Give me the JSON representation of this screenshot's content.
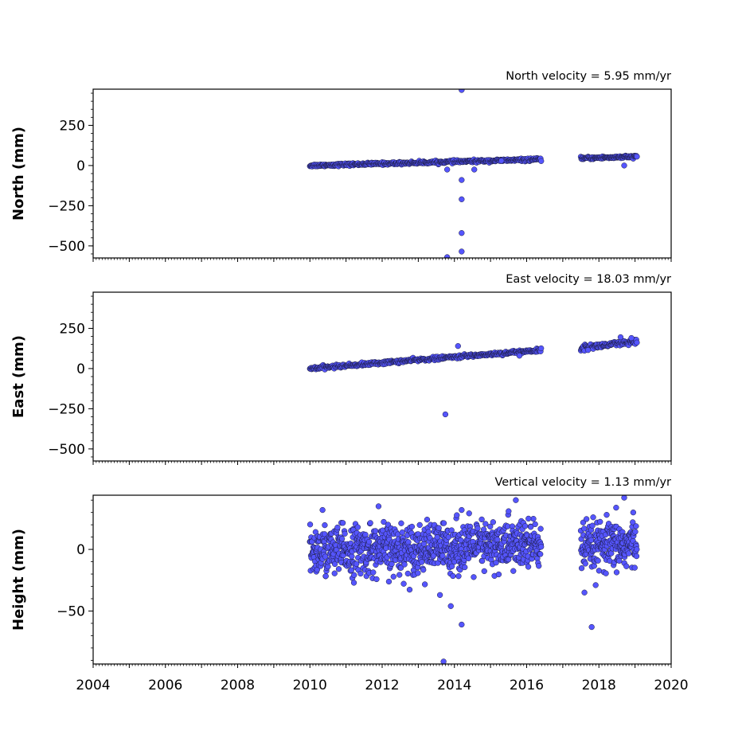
{
  "chart_data": [
    {
      "type": "scatter",
      "title": "North velocity = 5.95 mm/yr",
      "xlabel": "",
      "ylabel": "North (mm)",
      "xlim": [
        2004,
        2020
      ],
      "ylim": [
        -575,
        475
      ],
      "xticks": [
        2004,
        2006,
        2008,
        2010,
        2012,
        2014,
        2016,
        2018,
        2020
      ],
      "yticks": [
        250,
        0,
        -250,
        -500
      ],
      "ytick_labels": [
        "250",
        "0",
        "−250",
        "−500"
      ],
      "show_xtick_labels": false,
      "marker_color": "#5555ff",
      "series": [
        {
          "name": "",
          "segments": [
            {
              "x0": 2010.0,
              "x1": 2016.4,
              "y0": 0,
              "y1": 38,
              "scatter": 4,
              "n": 420
            },
            {
              "x0": 2017.5,
              "x1": 2019.05,
              "y0": 45,
              "y1": 55,
              "scatter": 4,
              "n": 110
            }
          ],
          "outliers": [
            [
              2014.2,
              470
            ],
            [
              2014.2,
              -90
            ],
            [
              2014.2,
              -210
            ],
            [
              2014.2,
              -420
            ],
            [
              2014.2,
              -535
            ],
            [
              2013.8,
              -570
            ],
            [
              2013.8,
              -25
            ],
            [
              2014.55,
              -25
            ],
            [
              2018.7,
              0
            ],
            [
              2015.3,
              30
            ]
          ]
        }
      ]
    },
    {
      "type": "scatter",
      "title": "East velocity = 18.03 mm/yr",
      "xlabel": "",
      "ylabel": "East (mm)",
      "xlim": [
        2004,
        2020
      ],
      "ylim": [
        -575,
        475
      ],
      "xticks": [
        2004,
        2006,
        2008,
        2010,
        2012,
        2014,
        2016,
        2018,
        2020
      ],
      "yticks": [
        250,
        0,
        -250,
        -500
      ],
      "ytick_labels": [
        "250",
        "0",
        "−250",
        "−500"
      ],
      "show_xtick_labels": false,
      "marker_color": "#5555ff",
      "series": [
        {
          "name": "",
          "segments": [
            {
              "x0": 2010.0,
              "x1": 2016.4,
              "y0": 0,
              "y1": 115,
              "scatter": 5,
              "n": 420
            },
            {
              "x0": 2017.5,
              "x1": 2019.05,
              "y0": 130,
              "y1": 165,
              "scatter": 8,
              "n": 110
            }
          ],
          "outliers": [
            [
              2014.1,
              140
            ],
            [
              2013.75,
              -285
            ],
            [
              2015.8,
              80
            ],
            [
              2018.6,
              195
            ],
            [
              2018.9,
              190
            ],
            [
              2017.7,
              115
            ]
          ]
        }
      ]
    },
    {
      "type": "scatter",
      "title": "Vertical velocity = 1.13 mm/yr",
      "xlabel": "",
      "ylabel": "Height (mm)",
      "xlim": [
        2004,
        2020
      ],
      "ylim": [
        -93,
        44
      ],
      "xticks": [
        2004,
        2006,
        2008,
        2010,
        2012,
        2014,
        2016,
        2018,
        2020
      ],
      "xtick_labels": [
        "2004",
        "2006",
        "2008",
        "2010",
        "2012",
        "2014",
        "2016",
        "2018",
        "2020"
      ],
      "yticks": [
        0,
        -50
      ],
      "ytick_labels": [
        "0",
        "−50"
      ],
      "show_xtick_labels": true,
      "marker_color": "#5555ff",
      "series": [
        {
          "name": "",
          "segments": [
            {
              "x0": 2010.0,
              "x1": 2016.4,
              "y0": -2,
              "y1": 4,
              "scatter": 10,
              "n": 900
            },
            {
              "x0": 2017.5,
              "x1": 2019.05,
              "y0": 0,
              "y1": 4,
              "scatter": 10,
              "n": 220
            }
          ],
          "outliers": [
            [
              2013.7,
              -91
            ],
            [
              2014.2,
              -61
            ],
            [
              2017.8,
              -63
            ],
            [
              2013.6,
              -37
            ],
            [
              2013.9,
              -46
            ],
            [
              2015.7,
              40
            ],
            [
              2018.7,
              42
            ],
            [
              2011.9,
              35
            ],
            [
              2014.2,
              32
            ],
            [
              2010.35,
              32
            ],
            [
              2017.6,
              -35
            ],
            [
              2018.95,
              30
            ],
            [
              2015.5,
              31
            ],
            [
              2016.05,
              25
            ]
          ]
        }
      ]
    }
  ]
}
